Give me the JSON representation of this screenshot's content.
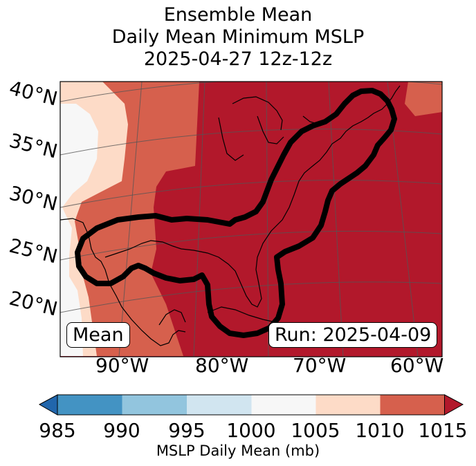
{
  "title": {
    "line1": "Ensemble Mean",
    "line2": "Daily Mean Minimum MSLP",
    "line3": "2025-04-27 12z-12z"
  },
  "map": {
    "lat_labels": [
      "40°N",
      "35°N",
      "30°N",
      "25°N",
      "20°N"
    ],
    "lon_labels": [
      "90°W",
      "80°W",
      "70°W",
      "60°W"
    ],
    "region": "Eastern United States, Gulf of Mexico and western Atlantic",
    "contour_color": "#000000"
  },
  "boxes": {
    "left": "Mean",
    "right": "Run: 2025-04-09"
  },
  "colorbar": {
    "ticks": [
      "985",
      "990",
      "995",
      "1000",
      "1005",
      "1010",
      "1015"
    ],
    "label": "MSLP Daily Mean (mb)",
    "colors": {
      "below": "#2166ac",
      "985-990": "#4393c3",
      "990-995": "#92c5de",
      "995-1000": "#d1e5f0",
      "1000-1005": "#f7f7f7",
      "1005-1010": "#fddbc7",
      "1010-1015": "#d6604d",
      "above": "#b2182b"
    }
  }
}
